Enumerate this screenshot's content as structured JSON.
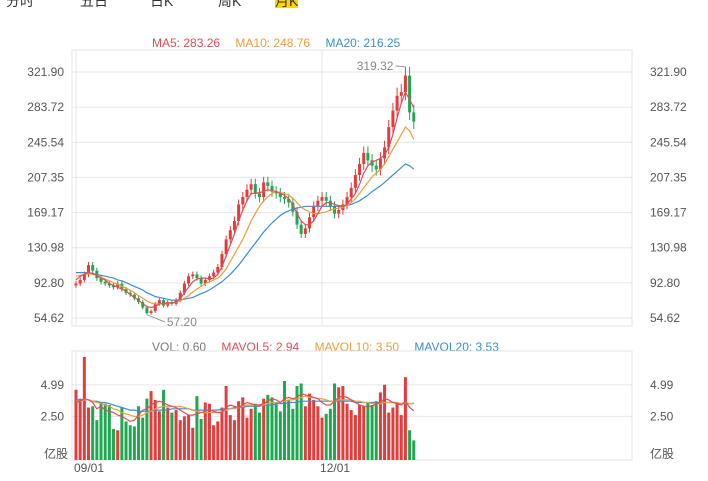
{
  "header": {
    "tabs": [
      "分时",
      "五日",
      "日K",
      "周K",
      "月K"
    ],
    "active_tab": 4
  },
  "colors": {
    "up": "#e63b3b",
    "down": "#1fa84f",
    "ma5": "#e44b59",
    "ma10": "#f39c3c",
    "ma20": "#3a8fd0",
    "grid": "#e6e6e6",
    "text": "#555555"
  },
  "legend": {
    "ma5": "MA5: 283.26",
    "ma10": "MA10: 248.76",
    "ma20": "MA20: 216.25",
    "vol": "VOL: 0.60",
    "mavol5": "MAVOL5: 2.94",
    "mavol10": "MAVOL10: 3.50",
    "mavol20": "MAVOL20: 3.53"
  },
  "annotations": {
    "high": "319.32",
    "low": "57.20"
  },
  "chart_data": [
    {
      "type": "candlestick",
      "y_ticks": [
        "321.90",
        "283.72",
        "245.54",
        "207.35",
        "169.17",
        "130.98",
        "92.80",
        "54.62"
      ],
      "y_tick_values": [
        321.9,
        283.72,
        245.54,
        207.35,
        169.17,
        130.98,
        92.8,
        54.62
      ],
      "ylim": [
        54.62,
        321.9
      ],
      "x_ticks": [
        "09/01",
        "12/01"
      ],
      "x_tick_index": [
        0,
        59
      ],
      "series_names": [
        "MA5",
        "MA10",
        "MA20"
      ],
      "close": [
        92,
        96,
        102,
        112,
        106,
        98,
        94,
        92,
        90,
        88,
        92,
        86,
        82,
        80,
        76,
        72,
        66,
        60,
        62,
        70,
        74,
        68,
        72,
        70,
        74,
        82,
        92,
        100,
        102,
        98,
        92,
        96,
        100,
        104,
        110,
        124,
        140,
        150,
        160,
        178,
        186,
        194,
        200,
        190,
        186,
        202,
        198,
        192,
        190,
        186,
        184,
        180,
        170,
        156,
        146,
        152,
        164,
        176,
        182,
        186,
        182,
        176,
        168,
        172,
        178,
        186,
        196,
        210,
        222,
        234,
        226,
        220,
        216,
        228,
        240,
        262,
        280,
        296,
        300,
        318,
        278,
        268
      ],
      "ma5": [
        96,
        100,
        102,
        104,
        103,
        101,
        98,
        96,
        92,
        90,
        88,
        86,
        84,
        80,
        77,
        74,
        70,
        67,
        66,
        67,
        70,
        70,
        71,
        71,
        72,
        76,
        82,
        88,
        94,
        97,
        98,
        98,
        97,
        98,
        102,
        110,
        122,
        134,
        146,
        160,
        172,
        182,
        190,
        190,
        191,
        192,
        194,
        193,
        192,
        190,
        188,
        184,
        178,
        168,
        160,
        156,
        156,
        160,
        168,
        176,
        180,
        180,
        178,
        177,
        176,
        178,
        184,
        190,
        200,
        212,
        220,
        224,
        226,
        228,
        232,
        240,
        254,
        272,
        288,
        300,
        292,
        283.26
      ],
      "ma10": [
        100,
        101,
        102,
        103,
        102,
        101,
        99,
        97,
        95,
        93,
        91,
        89,
        87,
        85,
        82,
        79,
        76,
        73,
        71,
        70,
        70,
        70,
        70,
        71,
        72,
        73,
        76,
        79,
        83,
        86,
        89,
        92,
        94,
        96,
        98,
        102,
        108,
        116,
        124,
        132,
        140,
        150,
        160,
        168,
        176,
        182,
        186,
        190,
        192,
        191,
        190,
        188,
        185,
        180,
        175,
        172,
        170,
        168,
        168,
        169,
        170,
        172,
        173,
        174,
        175,
        177,
        180,
        184,
        190,
        196,
        202,
        208,
        212,
        216,
        222,
        230,
        238,
        246,
        254,
        262,
        258,
        248.76
      ],
      "ma20": [
        104,
        104,
        104,
        104,
        103,
        102,
        101,
        100,
        99,
        98,
        96,
        95,
        93,
        91,
        89,
        87,
        85,
        82,
        80,
        78,
        77,
        76,
        75,
        74,
        74,
        74,
        75,
        76,
        77,
        79,
        81,
        83,
        85,
        88,
        91,
        94,
        98,
        102,
        107,
        112,
        118,
        124,
        130,
        136,
        142,
        148,
        153,
        158,
        162,
        166,
        169,
        171,
        173,
        174,
        175,
        176,
        176,
        176,
        176,
        176,
        176,
        176,
        176,
        176,
        176,
        177,
        178,
        180,
        182,
        185,
        188,
        192,
        195,
        198,
        202,
        206,
        210,
        214,
        218,
        222,
        220,
        216.25
      ]
    },
    {
      "type": "bar",
      "y_ticks": [
        "4.99",
        "2.50"
      ],
      "y_tick_values": [
        4.99,
        2.5
      ],
      "ylim": [
        0,
        7.5
      ],
      "unit": "亿股",
      "series_names": [
        "VOL",
        "MAVOL5",
        "MAVOL10",
        "MAVOL20"
      ],
      "values": [
        4.6,
        3.9,
        7.2,
        3.2,
        3.3,
        2.2,
        3.6,
        3.5,
        3.4,
        1.5,
        1.4,
        3.2,
        2.1,
        1.8,
        1.7,
        3.3,
        2.4,
        3.9,
        4.5,
        3.8,
        2.9,
        4.6,
        3.2,
        2.8,
        3.0,
        2.2,
        2.5,
        2.6,
        1.6,
        4.1,
        2.3,
        3.6,
        3.5,
        1.8,
        2.1,
        3.2,
        4.9,
        2.6,
        2.2,
        3.7,
        4.0,
        2.4,
        3.1,
        3.5,
        2.8,
        3.9,
        4.2,
        4.0,
        3.6,
        2.9,
        5.3,
        3.8,
        3.1,
        4.9,
        5.1,
        3.3,
        4.3,
        3.8,
        3.3,
        2.4,
        2.7,
        3.1,
        5.1,
        4.8,
        4.9,
        3.5,
        3.0,
        2.6,
        3.4,
        3.3,
        3.6,
        3.4,
        3.7,
        4.4,
        5.0,
        2.8,
        3.2,
        3.6,
        2.6,
        5.6,
        1.4,
        0.6
      ],
      "mavol5": [
        3.6,
        3.7,
        3.9,
        3.8,
        3.6,
        3.1,
        3.3,
        3.0,
        2.9,
        2.8,
        2.6,
        2.5,
        2.3,
        2.1,
        2.2,
        2.6,
        3.0,
        3.1,
        3.4,
        3.6,
        3.7,
        3.6,
        3.4,
        3.3,
        3.2,
        3.0,
        2.8,
        2.6,
        2.6,
        2.7,
        2.8,
        2.9,
        3.0,
        2.9,
        2.8,
        2.8,
        3.2,
        3.4,
        3.3,
        3.2,
        3.4,
        3.6,
        3.5,
        3.4,
        3.4,
        3.5,
        3.7,
        3.9,
        3.8,
        3.6,
        3.9,
        4.0,
        3.9,
        4.0,
        4.3,
        4.2,
        4.1,
        4.0,
        3.9,
        3.6,
        3.4,
        3.4,
        3.7,
        4.0,
        4.1,
        4.0,
        3.8,
        3.6,
        3.4,
        3.3,
        3.3,
        3.3,
        3.5,
        3.6,
        3.9,
        3.8,
        3.6,
        3.5,
        3.4,
        3.7,
        3.2,
        2.94
      ],
      "mavol10": [
        3.7,
        3.7,
        3.8,
        3.8,
        3.7,
        3.6,
        3.5,
        3.4,
        3.3,
        3.1,
        3.0,
        2.8,
        2.7,
        2.6,
        2.5,
        2.5,
        2.6,
        2.8,
        2.9,
        3.1,
        3.2,
        3.3,
        3.3,
        3.3,
        3.3,
        3.3,
        3.2,
        3.1,
        3.0,
        2.9,
        2.8,
        2.8,
        2.8,
        2.8,
        2.8,
        2.9,
        3.0,
        3.1,
        3.1,
        3.2,
        3.3,
        3.4,
        3.4,
        3.4,
        3.4,
        3.4,
        3.5,
        3.6,
        3.6,
        3.6,
        3.7,
        3.8,
        3.8,
        3.9,
        4.0,
        4.1,
        4.0,
        4.0,
        3.9,
        3.9,
        3.8,
        3.7,
        3.7,
        3.8,
        3.8,
        3.8,
        3.8,
        3.7,
        3.7,
        3.6,
        3.6,
        3.5,
        3.5,
        3.5,
        3.6,
        3.6,
        3.6,
        3.6,
        3.5,
        3.6,
        3.5,
        3.5
      ],
      "mavol20": [
        3.8,
        3.8,
        3.8,
        3.8,
        3.7,
        3.7,
        3.6,
        3.6,
        3.5,
        3.4,
        3.3,
        3.2,
        3.1,
        3.0,
        3.0,
        2.9,
        2.9,
        2.9,
        2.9,
        3.0,
        3.0,
        3.0,
        3.0,
        3.1,
        3.1,
        3.1,
        3.1,
        3.1,
        3.0,
        3.0,
        3.0,
        3.0,
        3.0,
        3.0,
        3.0,
        3.1,
        3.1,
        3.1,
        3.2,
        3.2,
        3.2,
        3.3,
        3.3,
        3.3,
        3.3,
        3.4,
        3.4,
        3.4,
        3.5,
        3.5,
        3.5,
        3.6,
        3.6,
        3.6,
        3.7,
        3.7,
        3.7,
        3.7,
        3.7,
        3.7,
        3.7,
        3.7,
        3.7,
        3.7,
        3.7,
        3.7,
        3.7,
        3.6,
        3.6,
        3.6,
        3.6,
        3.6,
        3.6,
        3.6,
        3.6,
        3.6,
        3.6,
        3.6,
        3.5,
        3.5,
        3.5,
        3.53
      ]
    }
  ]
}
